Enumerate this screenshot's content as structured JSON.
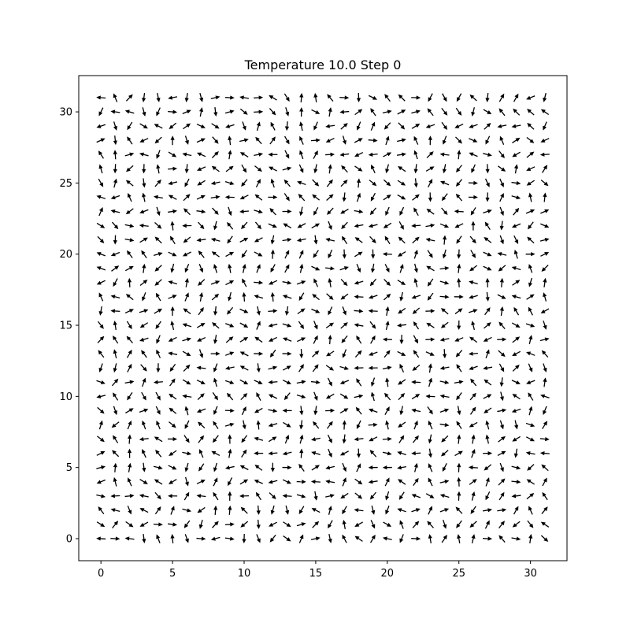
{
  "figure": {
    "title": "Temperature 10.0 Step 0",
    "background": "#ffffff"
  },
  "chart_data": {
    "type": "quiver",
    "title": "Temperature 10.0 Step 0",
    "xlabel": "",
    "ylabel": "",
    "xlim": [
      -1.55,
      32.55
    ],
    "ylim": [
      -1.55,
      32.55
    ],
    "xticks": [
      0,
      5,
      10,
      15,
      20,
      25,
      30
    ],
    "yticks": [
      0,
      5,
      10,
      15,
      20,
      25,
      30
    ],
    "grid": false,
    "lattice": {
      "nx": 32,
      "ny": 32,
      "x_start": 0,
      "y_start": 0,
      "spacing": 1
    },
    "arrow_color": "#000000",
    "description_of_values": "angle of each spin in degrees, rows listed from y=0 upward, each row x=0..31; randomized high-temperature configuration",
    "angles_deg_rows": []
  }
}
